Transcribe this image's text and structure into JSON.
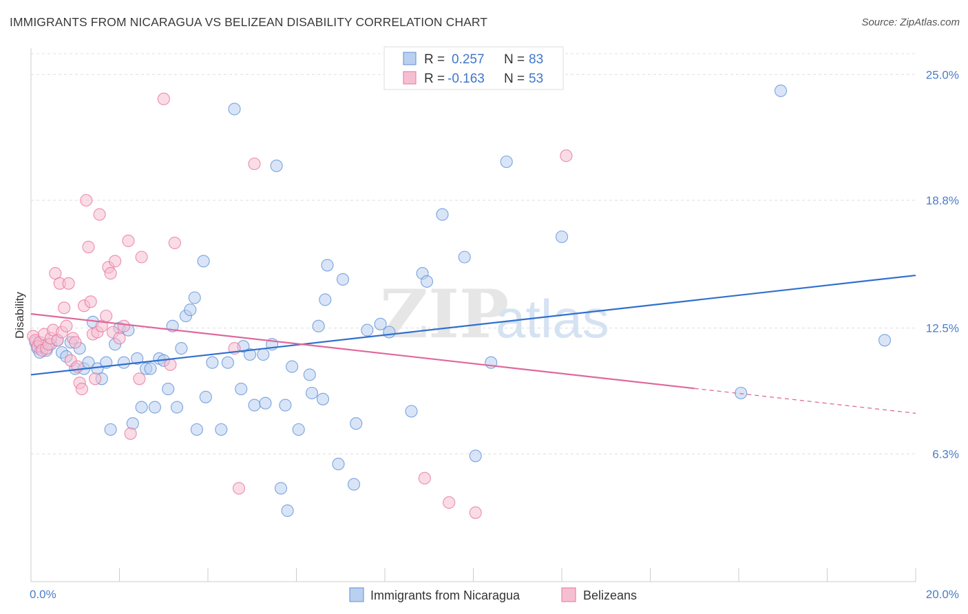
{
  "title": "IMMIGRANTS FROM NICARAGUA VS BELIZEAN DISABILITY CORRELATION CHART",
  "source": "Source: ZipAtlas.com",
  "watermark": {
    "zip": "ZIP",
    "atlas": "atlas"
  },
  "colors": {
    "blue": "#5b8fd6",
    "blue_fill": "#b9d0f0",
    "pink": "#e8739b",
    "pink_fill": "#f6bfd1",
    "tick": "#4a7cc9",
    "grid": "#dddddd"
  },
  "legend": {
    "rows": [
      {
        "r_label": "R =",
        "r_value": "0.257",
        "n_label": "N =",
        "n_value": "83"
      },
      {
        "r_label": "R =",
        "r_value": "-0.163",
        "n_label": "N =",
        "n_value": "53"
      }
    ]
  },
  "bottom_legend": [
    "Immigrants from Nicaragua",
    "Belizeans"
  ],
  "chart_data": {
    "type": "scatter",
    "title": "IMMIGRANTS FROM NICARAGUA VS BELIZEAN DISABILITY CORRELATION CHART",
    "xlabel": "",
    "ylabel": "Disability",
    "xlim": [
      0,
      20
    ],
    "ylim": [
      0,
      26.3
    ],
    "x_tick_labels": [
      "0.0%",
      "20.0%"
    ],
    "y_ticks": [
      6.3,
      12.5,
      18.8,
      25.0
    ],
    "y_tick_labels": [
      "6.3%",
      "12.5%",
      "18.8%",
      "25.0%"
    ],
    "grid": "horizontal dashed",
    "legend_position": "top-center",
    "series": [
      {
        "name": "Immigrants from Nicaragua",
        "color": "#5b8fd6",
        "r": 0.257,
        "n": 83,
        "trend": {
          "x": [
            0,
            20
          ],
          "y": [
            10.2,
            15.1
          ],
          "dashed_from": null
        },
        "points": [
          [
            0.1,
            11.8
          ],
          [
            0.15,
            11.5
          ],
          [
            0.2,
            11.3
          ],
          [
            0.25,
            11.6
          ],
          [
            0.35,
            11.4
          ],
          [
            0.45,
            11.7
          ],
          [
            0.6,
            11.9
          ],
          [
            0.7,
            11.3
          ],
          [
            0.8,
            11.1
          ],
          [
            0.9,
            11.8
          ],
          [
            1.0,
            10.5
          ],
          [
            1.1,
            11.5
          ],
          [
            1.2,
            10.5
          ],
          [
            1.3,
            10.8
          ],
          [
            1.4,
            12.8
          ],
          [
            1.5,
            10.5
          ],
          [
            1.6,
            10.0
          ],
          [
            1.7,
            10.8
          ],
          [
            1.8,
            7.5
          ],
          [
            1.9,
            11.7
          ],
          [
            2.0,
            12.5
          ],
          [
            2.1,
            10.8
          ],
          [
            2.2,
            12.4
          ],
          [
            2.3,
            7.8
          ],
          [
            2.4,
            11.0
          ],
          [
            2.5,
            8.6
          ],
          [
            2.6,
            10.5
          ],
          [
            2.7,
            10.5
          ],
          [
            2.8,
            8.6
          ],
          [
            2.9,
            11.0
          ],
          [
            3.0,
            10.9
          ],
          [
            3.1,
            9.5
          ],
          [
            3.2,
            12.6
          ],
          [
            3.3,
            8.6
          ],
          [
            3.4,
            11.5
          ],
          [
            3.5,
            13.1
          ],
          [
            3.6,
            13.4
          ],
          [
            3.7,
            14.0
          ],
          [
            3.75,
            7.5
          ],
          [
            3.9,
            15.8
          ],
          [
            3.95,
            9.1
          ],
          [
            4.1,
            10.8
          ],
          [
            4.3,
            7.5
          ],
          [
            4.45,
            10.8
          ],
          [
            4.6,
            23.3
          ],
          [
            4.75,
            9.5
          ],
          [
            4.8,
            11.6
          ],
          [
            4.95,
            11.2
          ],
          [
            5.05,
            8.7
          ],
          [
            5.25,
            11.2
          ],
          [
            5.3,
            8.8
          ],
          [
            5.45,
            11.7
          ],
          [
            5.55,
            20.5
          ],
          [
            5.65,
            4.6
          ],
          [
            5.75,
            8.7
          ],
          [
            5.8,
            3.5
          ],
          [
            5.9,
            10.6
          ],
          [
            6.05,
            7.5
          ],
          [
            6.3,
            10.2
          ],
          [
            6.35,
            9.3
          ],
          [
            6.5,
            12.6
          ],
          [
            6.6,
            9.0
          ],
          [
            6.65,
            13.9
          ],
          [
            6.7,
            15.6
          ],
          [
            6.95,
            5.8
          ],
          [
            7.05,
            14.9
          ],
          [
            7.3,
            4.8
          ],
          [
            7.35,
            7.8
          ],
          [
            7.6,
            12.4
          ],
          [
            7.9,
            12.7
          ],
          [
            8.1,
            12.3
          ],
          [
            8.6,
            8.4
          ],
          [
            8.85,
            15.2
          ],
          [
            8.95,
            14.8
          ],
          [
            9.3,
            18.1
          ],
          [
            9.8,
            16.0
          ],
          [
            10.05,
            6.2
          ],
          [
            10.4,
            10.8
          ],
          [
            10.75,
            20.7
          ],
          [
            12.0,
            17.0
          ],
          [
            16.05,
            9.3
          ],
          [
            16.95,
            24.2
          ],
          [
            19.3,
            11.9
          ]
        ]
      },
      {
        "name": "Belizeans",
        "color": "#e8739b",
        "r": -0.163,
        "n": 53,
        "trend": {
          "x": [
            0,
            20
          ],
          "y": [
            13.2,
            8.3
          ],
          "dashed_from": 15.0
        },
        "points": [
          [
            0.05,
            12.1
          ],
          [
            0.1,
            11.9
          ],
          [
            0.15,
            11.6
          ],
          [
            0.2,
            11.8
          ],
          [
            0.25,
            11.4
          ],
          [
            0.3,
            12.2
          ],
          [
            0.35,
            11.5
          ],
          [
            0.4,
            11.7
          ],
          [
            0.45,
            12.0
          ],
          [
            0.5,
            12.4
          ],
          [
            0.55,
            15.2
          ],
          [
            0.6,
            11.9
          ],
          [
            0.65,
            14.7
          ],
          [
            0.7,
            12.3
          ],
          [
            0.75,
            13.5
          ],
          [
            0.8,
            12.6
          ],
          [
            0.85,
            14.7
          ],
          [
            0.9,
            10.9
          ],
          [
            0.95,
            12.0
          ],
          [
            1.0,
            11.8
          ],
          [
            1.05,
            10.6
          ],
          [
            1.1,
            9.8
          ],
          [
            1.15,
            9.5
          ],
          [
            1.2,
            13.6
          ],
          [
            1.25,
            18.8
          ],
          [
            1.3,
            16.5
          ],
          [
            1.35,
            13.8
          ],
          [
            1.4,
            12.2
          ],
          [
            1.45,
            10.0
          ],
          [
            1.5,
            12.3
          ],
          [
            1.55,
            18.1
          ],
          [
            1.6,
            12.6
          ],
          [
            1.7,
            13.1
          ],
          [
            1.75,
            15.5
          ],
          [
            1.8,
            15.2
          ],
          [
            1.85,
            12.3
          ],
          [
            1.9,
            15.8
          ],
          [
            2.0,
            12.0
          ],
          [
            2.1,
            12.6
          ],
          [
            2.2,
            16.8
          ],
          [
            2.25,
            7.3
          ],
          [
            2.45,
            10.0
          ],
          [
            2.5,
            16.0
          ],
          [
            3.0,
            23.8
          ],
          [
            3.15,
            10.7
          ],
          [
            3.25,
            16.7
          ],
          [
            4.6,
            11.5
          ],
          [
            4.7,
            4.6
          ],
          [
            5.05,
            20.6
          ],
          [
            8.9,
            5.1
          ],
          [
            9.45,
            3.9
          ],
          [
            10.05,
            3.4
          ],
          [
            12.1,
            21.0
          ]
        ]
      }
    ]
  }
}
